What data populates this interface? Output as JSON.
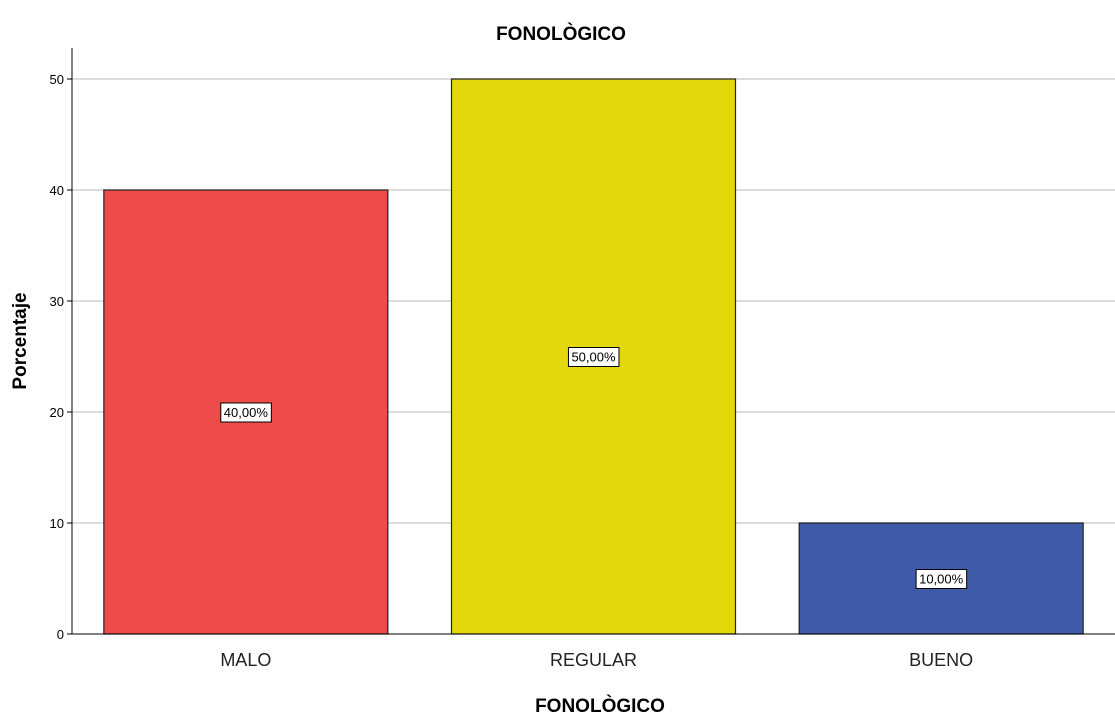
{
  "chart_data": {
    "type": "bar",
    "title": "FONOLÒGICO",
    "xlabel": "FONOLÒGICO",
    "ylabel": "Porcentaje",
    "categories": [
      "MALO",
      "REGULAR",
      "BUENO"
    ],
    "values": [
      40,
      50,
      10
    ],
    "data_labels": [
      "40,00%",
      "50,00%",
      "10,00%"
    ],
    "colors": [
      "#EE4B4B",
      "#E2D80C",
      "#3E5AA8"
    ],
    "ylim": [
      0,
      50
    ],
    "yticks": [
      0,
      10,
      20,
      30,
      40,
      50
    ],
    "grid": true
  }
}
